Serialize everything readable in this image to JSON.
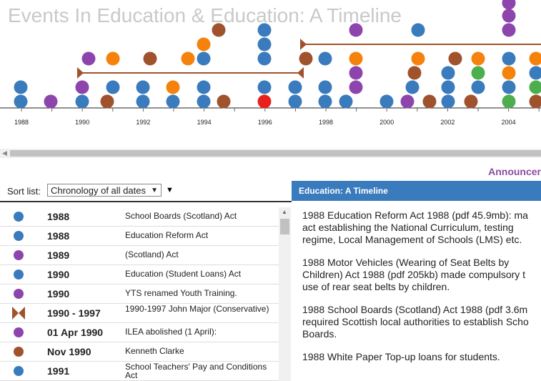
{
  "timeline": {
    "title": "Events In Education & Education: A Timeline",
    "axis_labels": [
      "1988",
      "1990",
      "1992",
      "1994",
      "1996",
      "1998",
      "2000",
      "2002",
      "2004"
    ],
    "colors": {
      "blue": "#3a7bbd",
      "purple": "#8e44ad",
      "orange": "#f5820d",
      "brown": "#a0522d",
      "red": "#e8211d",
      "green": "#4cae4c",
      "span": "#a0522d"
    }
  },
  "announce": "Announcer",
  "sort": {
    "label": "Sort list:",
    "selected": "Chronology of all dates",
    "caret": "▼",
    "arrow": "▼"
  },
  "list": {
    "rows": [
      {
        "icon": "dot",
        "color": "#3a7bbd",
        "date": "1988",
        "label": "School Boards (Scotland) Act"
      },
      {
        "icon": "dot",
        "color": "#3a7bbd",
        "date": "1988",
        "label": "Education Reform Act"
      },
      {
        "icon": "dot",
        "color": "#8e44ad",
        "date": "1989",
        "label": "(Scotland) Act"
      },
      {
        "icon": "dot",
        "color": "#3a7bbd",
        "date": "1990",
        "label": "Education (Student Loans) Act"
      },
      {
        "icon": "dot",
        "color": "#8e44ad",
        "date": "1990",
        "label": "YTS renamed Youth Training."
      },
      {
        "icon": "span",
        "color": "#a0522d",
        "date": "1990 - 1997",
        "label": "1990-1997 John Major (Conservative)"
      },
      {
        "icon": "dot",
        "color": "#8e44ad",
        "date": "01 Apr 1990",
        "label": "ILEA abolished (1 April):"
      },
      {
        "icon": "dot",
        "color": "#a0522d",
        "date": "Nov 1990",
        "label": "Kenneth Clarke"
      },
      {
        "icon": "dot",
        "color": "#3a7bbd",
        "date": "1991",
        "label": "School Teachers' Pay and Conditions Act"
      }
    ]
  },
  "panel": {
    "title": "Education: A Timeline",
    "articles": [
      "1988 Education Reform Act 1988 (pdf 45.9mb): ma\nact establishing the National Curriculum, testing\nregime, Local Management of Schools (LMS) etc.",
      "1988 Motor Vehicles (Wearing of Seat Belts by\nChildren) Act 1988 (pdf 205kb) made compulsory t\nuse of rear seat belts by children.",
      "1988 School Boards (Scotland) Act 1988 (pdf 3.6m\nrequired Scottish local authorities to establish Scho\nBoards.",
      "1988 White Paper Top-up loans for students."
    ]
  }
}
